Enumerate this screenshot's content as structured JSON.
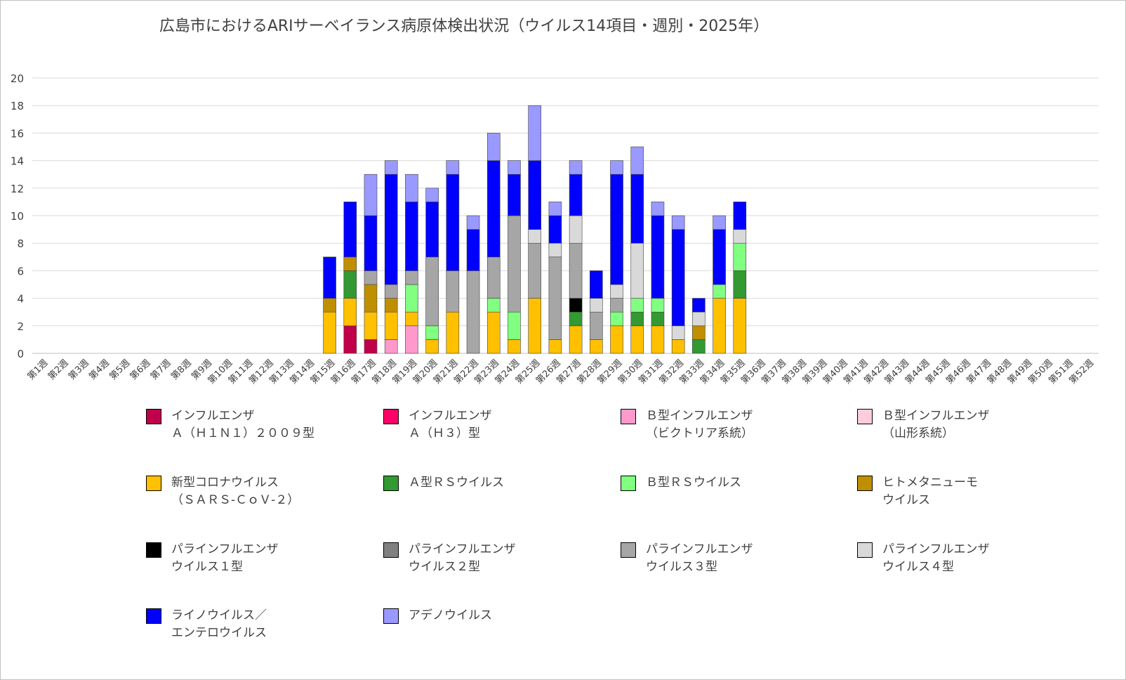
{
  "chart_data": {
    "type": "bar",
    "stacked": true,
    "title": "広島市におけるARIサーベイランス病原体検出状況（ウイルス14項目・週別・2025年）",
    "xlabel": "",
    "ylabel": "",
    "ylim": [
      0,
      20
    ],
    "yticks": [
      0,
      2,
      4,
      6,
      8,
      10,
      12,
      14,
      16,
      18,
      20
    ],
    "grid": true,
    "legend_position": "bottom",
    "categories": [
      "第1週",
      "第2週",
      "第3週",
      "第4週",
      "第5週",
      "第6週",
      "第7週",
      "第8週",
      "第9週",
      "第10週",
      "第11週",
      "第12週",
      "第13週",
      "第14週",
      "第15週",
      "第16週",
      "第17週",
      "第18週",
      "第19週",
      "第20週",
      "第21週",
      "第22週",
      "第23週",
      "第24週",
      "第25週",
      "第26週",
      "第27週",
      "第28週",
      "第29週",
      "第30週",
      "第31週",
      "第32週",
      "第33週",
      "第34週",
      "第35週",
      "第36週",
      "第37週",
      "第38週",
      "第39週",
      "第40週",
      "第41週",
      "第42週",
      "第43週",
      "第44週",
      "第45週",
      "第46週",
      "第47週",
      "第48週",
      "第49週",
      "第50週",
      "第51週",
      "第52週"
    ],
    "series": [
      {
        "name": "インフルエンザ\nＡ（Ｈ１Ｎ１）２００９型",
        "color": "#c0004a",
        "values": [
          0,
          0,
          0,
          0,
          0,
          0,
          0,
          0,
          0,
          0,
          0,
          0,
          0,
          0,
          0,
          2,
          1,
          0,
          0,
          0,
          0,
          0,
          0,
          0,
          0,
          0,
          0,
          0,
          0,
          0,
          0,
          0,
          0,
          0,
          0,
          0,
          0,
          0,
          0,
          0,
          0,
          0,
          0,
          0,
          0,
          0,
          0,
          0,
          0,
          0,
          0,
          0
        ]
      },
      {
        "name": "インフルエンザ\nＡ（Ｈ３）型",
        "color": "#ff0066",
        "values": [
          0,
          0,
          0,
          0,
          0,
          0,
          0,
          0,
          0,
          0,
          0,
          0,
          0,
          0,
          0,
          0,
          0,
          0,
          0,
          0,
          0,
          0,
          0,
          0,
          0,
          0,
          0,
          0,
          0,
          0,
          0,
          0,
          0,
          0,
          0,
          0,
          0,
          0,
          0,
          0,
          0,
          0,
          0,
          0,
          0,
          0,
          0,
          0,
          0,
          0,
          0,
          0
        ]
      },
      {
        "name": "Ｂ型インフルエンザ\n（ビクトリア系統）",
        "color": "#ff99cc",
        "values": [
          0,
          0,
          0,
          0,
          0,
          0,
          0,
          0,
          0,
          0,
          0,
          0,
          0,
          0,
          0,
          0,
          0,
          1,
          2,
          0,
          0,
          0,
          0,
          0,
          0,
          0,
          0,
          0,
          0,
          0,
          0,
          0,
          0,
          0,
          0,
          0,
          0,
          0,
          0,
          0,
          0,
          0,
          0,
          0,
          0,
          0,
          0,
          0,
          0,
          0,
          0,
          0
        ]
      },
      {
        "name": "Ｂ型インフルエンザ\n（山形系統）",
        "color": "#ffccdd",
        "values": [
          0,
          0,
          0,
          0,
          0,
          0,
          0,
          0,
          0,
          0,
          0,
          0,
          0,
          0,
          0,
          0,
          0,
          0,
          0,
          0,
          0,
          0,
          0,
          0,
          0,
          0,
          0,
          0,
          0,
          0,
          0,
          0,
          0,
          0,
          0,
          0,
          0,
          0,
          0,
          0,
          0,
          0,
          0,
          0,
          0,
          0,
          0,
          0,
          0,
          0,
          0,
          0
        ]
      },
      {
        "name": "新型コロナウイルス\n（ＳＡＲＳ-ＣｏＶ-２）",
        "color": "#ffc000",
        "values": [
          0,
          0,
          0,
          0,
          0,
          0,
          0,
          0,
          0,
          0,
          0,
          0,
          0,
          0,
          3,
          2,
          2,
          2,
          1,
          1,
          3,
          0,
          3,
          1,
          4,
          1,
          2,
          1,
          2,
          2,
          2,
          1,
          0,
          4,
          4,
          0,
          0,
          0,
          0,
          0,
          0,
          0,
          0,
          0,
          0,
          0,
          0,
          0,
          0,
          0,
          0,
          0
        ]
      },
      {
        "name": "Ａ型ＲＳウイルス",
        "color": "#339933",
        "values": [
          0,
          0,
          0,
          0,
          0,
          0,
          0,
          0,
          0,
          0,
          0,
          0,
          0,
          0,
          0,
          2,
          0,
          0,
          0,
          0,
          0,
          0,
          0,
          0,
          0,
          0,
          1,
          0,
          0,
          1,
          1,
          0,
          1,
          0,
          2,
          0,
          0,
          0,
          0,
          0,
          0,
          0,
          0,
          0,
          0,
          0,
          0,
          0,
          0,
          0,
          0,
          0
        ]
      },
      {
        "name": "Ｂ型ＲＳウイルス",
        "color": "#80ff80",
        "values": [
          0,
          0,
          0,
          0,
          0,
          0,
          0,
          0,
          0,
          0,
          0,
          0,
          0,
          0,
          0,
          0,
          0,
          0,
          2,
          1,
          0,
          0,
          1,
          2,
          0,
          0,
          0,
          0,
          1,
          1,
          1,
          0,
          0,
          1,
          2,
          0,
          0,
          0,
          0,
          0,
          0,
          0,
          0,
          0,
          0,
          0,
          0,
          0,
          0,
          0,
          0,
          0
        ]
      },
      {
        "name": "ヒトメタニューモ\nウイルス",
        "color": "#bf8f00",
        "values": [
          0,
          0,
          0,
          0,
          0,
          0,
          0,
          0,
          0,
          0,
          0,
          0,
          0,
          0,
          1,
          1,
          2,
          1,
          0,
          0,
          0,
          0,
          0,
          0,
          0,
          0,
          0,
          0,
          0,
          0,
          0,
          0,
          1,
          0,
          0,
          0,
          0,
          0,
          0,
          0,
          0,
          0,
          0,
          0,
          0,
          0,
          0,
          0,
          0,
          0,
          0,
          0
        ]
      },
      {
        "name": "パラインフルエンザ\nウイルス１型",
        "color": "#000000",
        "values": [
          0,
          0,
          0,
          0,
          0,
          0,
          0,
          0,
          0,
          0,
          0,
          0,
          0,
          0,
          0,
          0,
          0,
          0,
          0,
          0,
          0,
          0,
          0,
          0,
          0,
          0,
          1,
          0,
          0,
          0,
          0,
          0,
          0,
          0,
          0,
          0,
          0,
          0,
          0,
          0,
          0,
          0,
          0,
          0,
          0,
          0,
          0,
          0,
          0,
          0,
          0,
          0
        ]
      },
      {
        "name": "パラインフルエンザ\nウイルス２型",
        "color": "#808080",
        "values": [
          0,
          0,
          0,
          0,
          0,
          0,
          0,
          0,
          0,
          0,
          0,
          0,
          0,
          0,
          0,
          0,
          0,
          0,
          0,
          0,
          0,
          0,
          0,
          0,
          0,
          0,
          0,
          0,
          0,
          0,
          0,
          0,
          0,
          0,
          0,
          0,
          0,
          0,
          0,
          0,
          0,
          0,
          0,
          0,
          0,
          0,
          0,
          0,
          0,
          0,
          0,
          0
        ]
      },
      {
        "name": "パラインフルエンザ\nウイルス３型",
        "color": "#a6a6a6",
        "values": [
          0,
          0,
          0,
          0,
          0,
          0,
          0,
          0,
          0,
          0,
          0,
          0,
          0,
          0,
          0,
          0,
          1,
          1,
          1,
          5,
          3,
          6,
          3,
          7,
          4,
          6,
          4,
          2,
          1,
          0,
          0,
          0,
          0,
          0,
          0,
          0,
          0,
          0,
          0,
          0,
          0,
          0,
          0,
          0,
          0,
          0,
          0,
          0,
          0,
          0,
          0,
          0
        ]
      },
      {
        "name": "パラインフルエンザ\nウイルス４型",
        "color": "#d9d9d9",
        "values": [
          0,
          0,
          0,
          0,
          0,
          0,
          0,
          0,
          0,
          0,
          0,
          0,
          0,
          0,
          0,
          0,
          0,
          0,
          0,
          0,
          0,
          0,
          0,
          0,
          1,
          1,
          2,
          1,
          1,
          4,
          0,
          1,
          1,
          0,
          1,
          0,
          0,
          0,
          0,
          0,
          0,
          0,
          0,
          0,
          0,
          0,
          0,
          0,
          0,
          0,
          0,
          0
        ]
      },
      {
        "name": "ライノウイルス／\nエンテロウイルス",
        "color": "#0000ff",
        "values": [
          0,
          0,
          0,
          0,
          0,
          0,
          0,
          0,
          0,
          0,
          0,
          0,
          0,
          0,
          3,
          4,
          4,
          8,
          5,
          4,
          7,
          3,
          7,
          3,
          5,
          2,
          3,
          2,
          8,
          5,
          6,
          7,
          1,
          4,
          2,
          0,
          0,
          0,
          0,
          0,
          0,
          0,
          0,
          0,
          0,
          0,
          0,
          0,
          0,
          0,
          0,
          0
        ]
      },
      {
        "name": "アデノウイルス",
        "color": "#9999ff",
        "values": [
          0,
          0,
          0,
          0,
          0,
          0,
          0,
          0,
          0,
          0,
          0,
          0,
          0,
          0,
          0,
          0,
          3,
          1,
          2,
          1,
          1,
          1,
          2,
          1,
          4,
          1,
          1,
          0,
          1,
          2,
          1,
          1,
          0,
          1,
          0,
          0,
          0,
          0,
          0,
          0,
          0,
          0,
          0,
          0,
          0,
          0,
          0,
          0,
          0,
          0,
          0,
          0
        ]
      }
    ]
  }
}
